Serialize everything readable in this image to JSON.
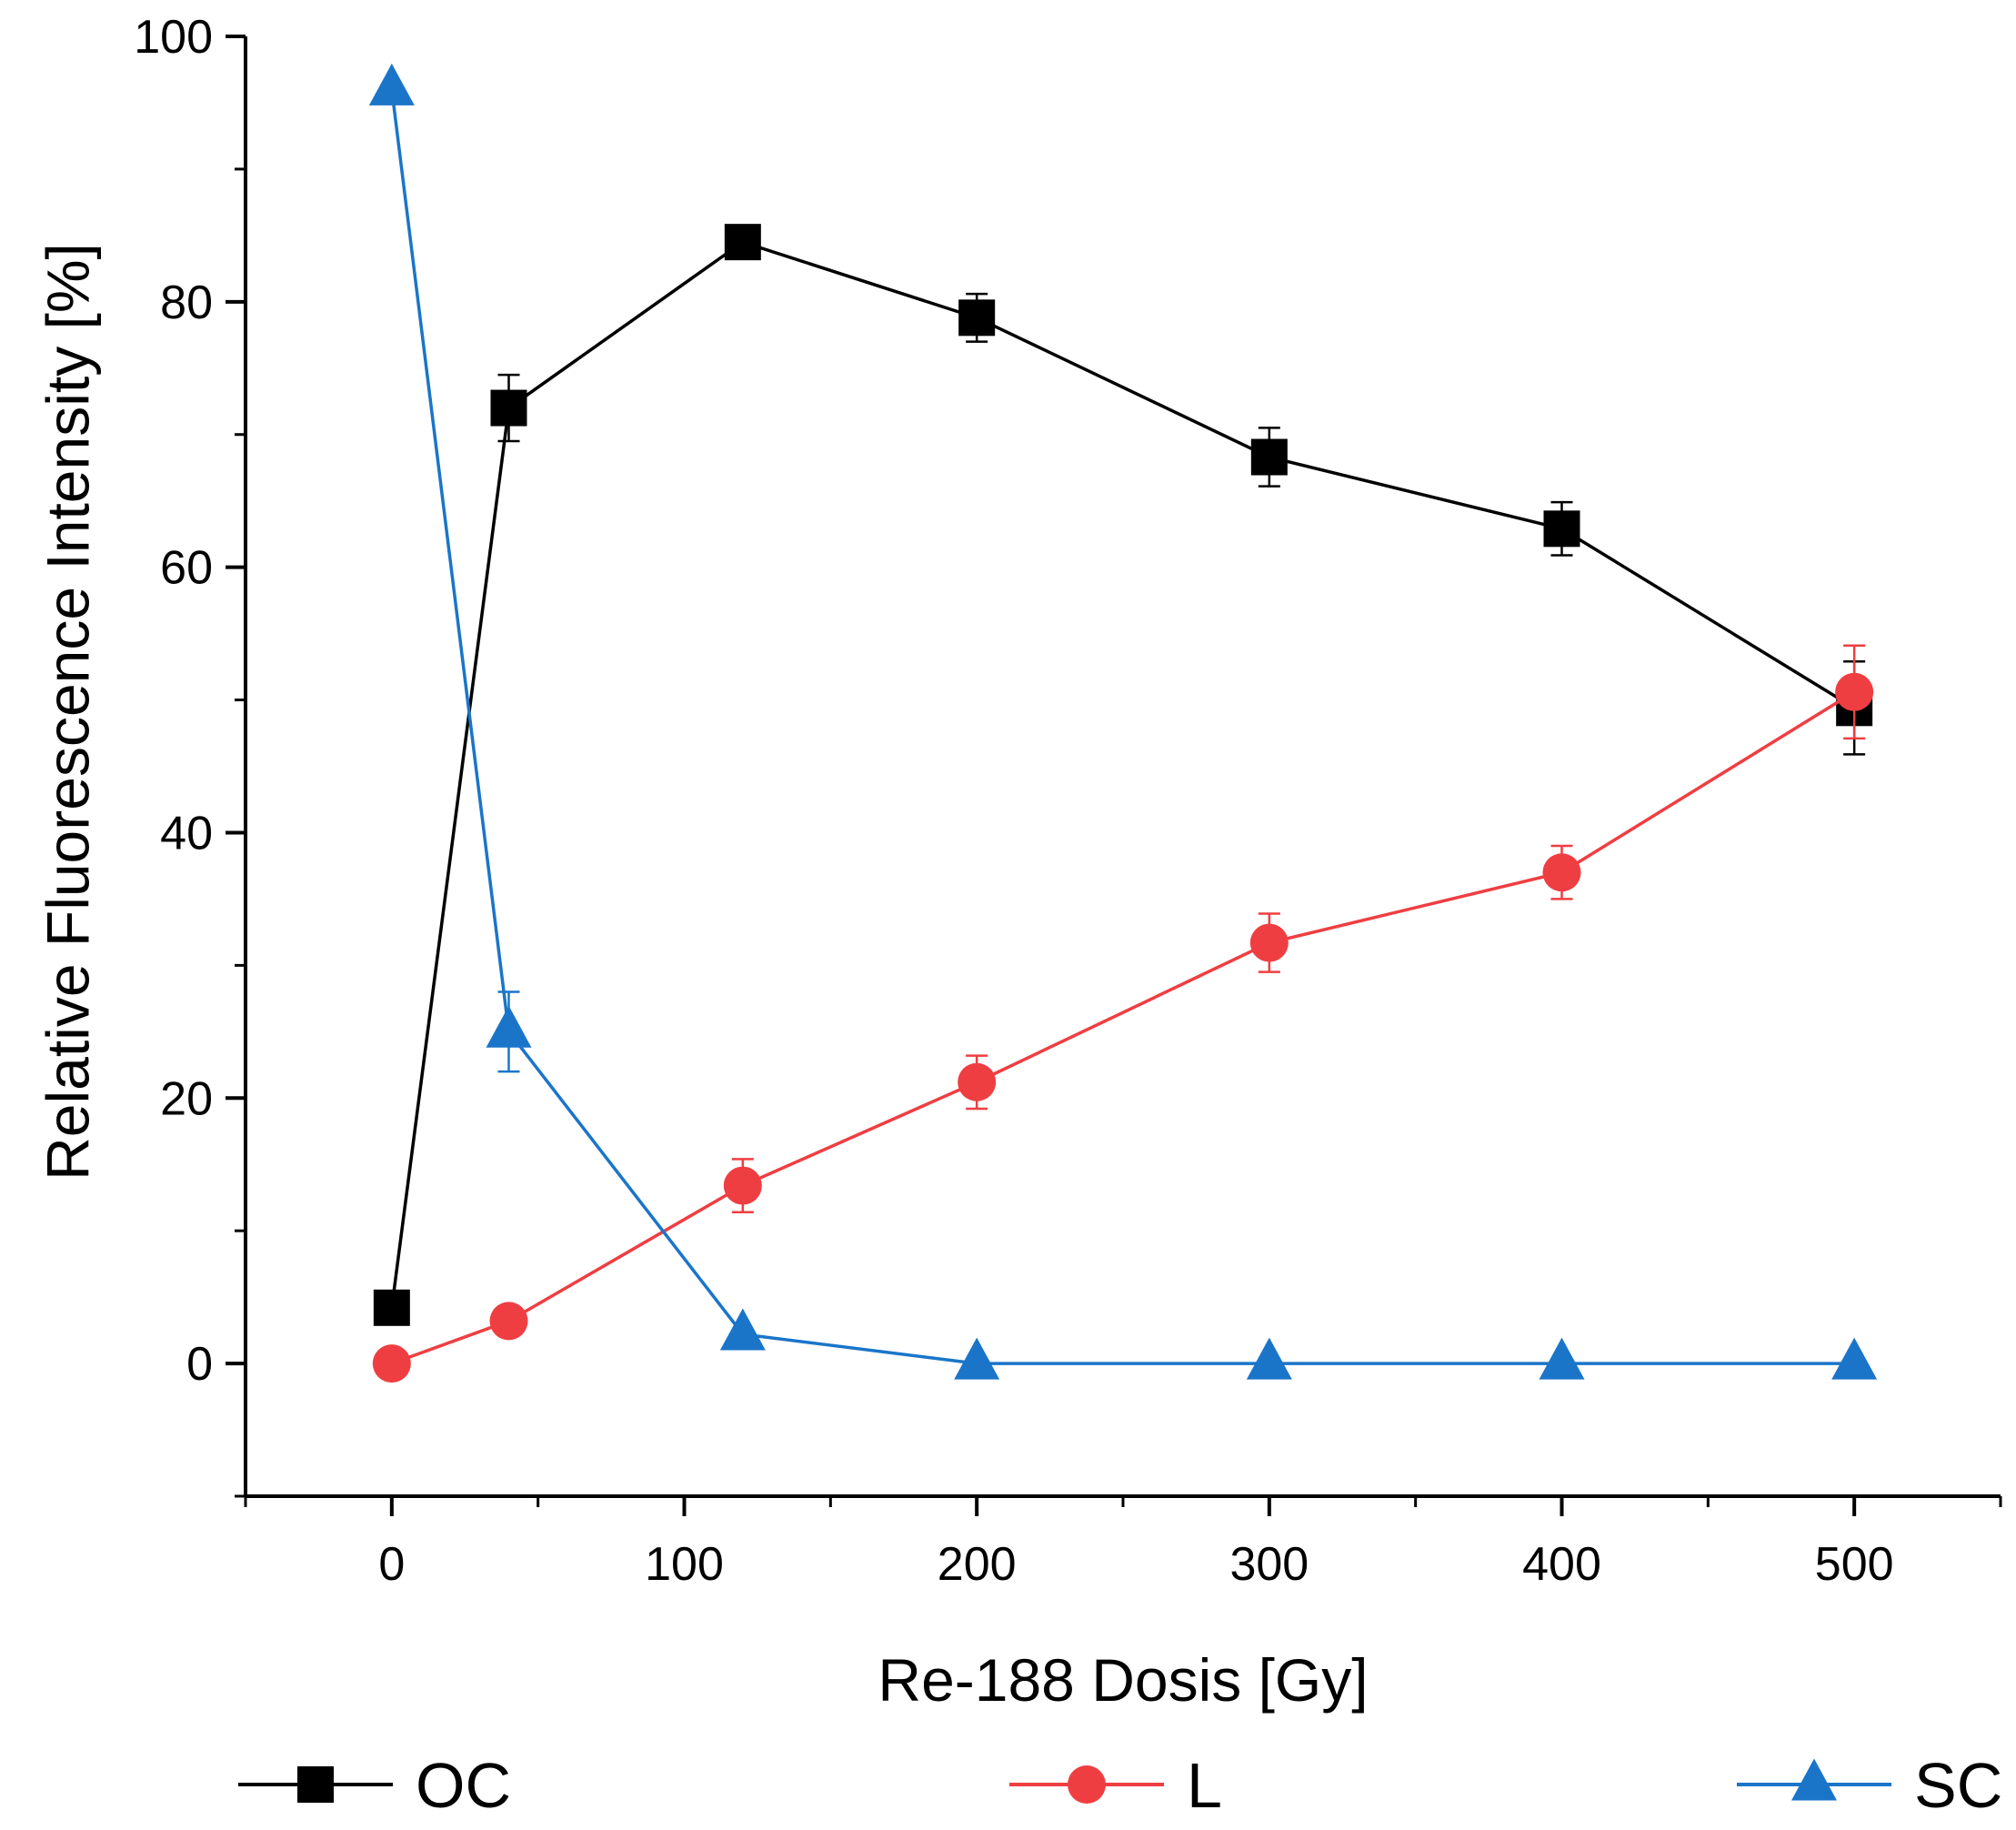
{
  "chart_data": {
    "type": "line",
    "title": "",
    "xlabel": "Re-188 Dosis [Gy]",
    "ylabel": "Relative Fluorescence Intensity [%]",
    "xlim": [
      -50,
      550
    ],
    "ylim": [
      -10,
      100
    ],
    "xticks": [
      0,
      100,
      200,
      300,
      400,
      500
    ],
    "xtick_labels": [
      "0",
      "100",
      "200",
      "300",
      "400",
      "500"
    ],
    "yticks": [
      0,
      20,
      40,
      60,
      80,
      100
    ],
    "ytick_labels": [
      "0",
      "20",
      "40",
      "60",
      "80",
      "100"
    ],
    "grid": false,
    "legend_position": "bottom",
    "x": [
      0,
      40,
      120,
      200,
      300,
      400,
      500
    ],
    "series": [
      {
        "name": "OC",
        "color": "#000000",
        "marker": "square",
        "values": [
          4.2,
          72,
          84.5,
          78.8,
          68.3,
          62.9,
          49.4
        ],
        "errors": [
          0,
          2.5,
          0.5,
          1.8,
          2.2,
          2.0,
          3.5
        ]
      },
      {
        "name": "L",
        "color": "#ef3e42",
        "marker": "circle",
        "values": [
          0,
          3.2,
          13.4,
          21.2,
          31.7,
          37.0,
          50.6
        ],
        "errors": [
          0,
          0,
          2.0,
          2.0,
          2.2,
          2.0,
          3.5
        ]
      },
      {
        "name": "SC",
        "color": "#1a75c9",
        "marker": "triangle",
        "values": [
          96,
          25,
          2.2,
          0,
          0,
          0,
          0
        ],
        "errors": [
          0,
          3.0,
          0,
          0,
          0,
          0,
          0
        ]
      }
    ]
  }
}
